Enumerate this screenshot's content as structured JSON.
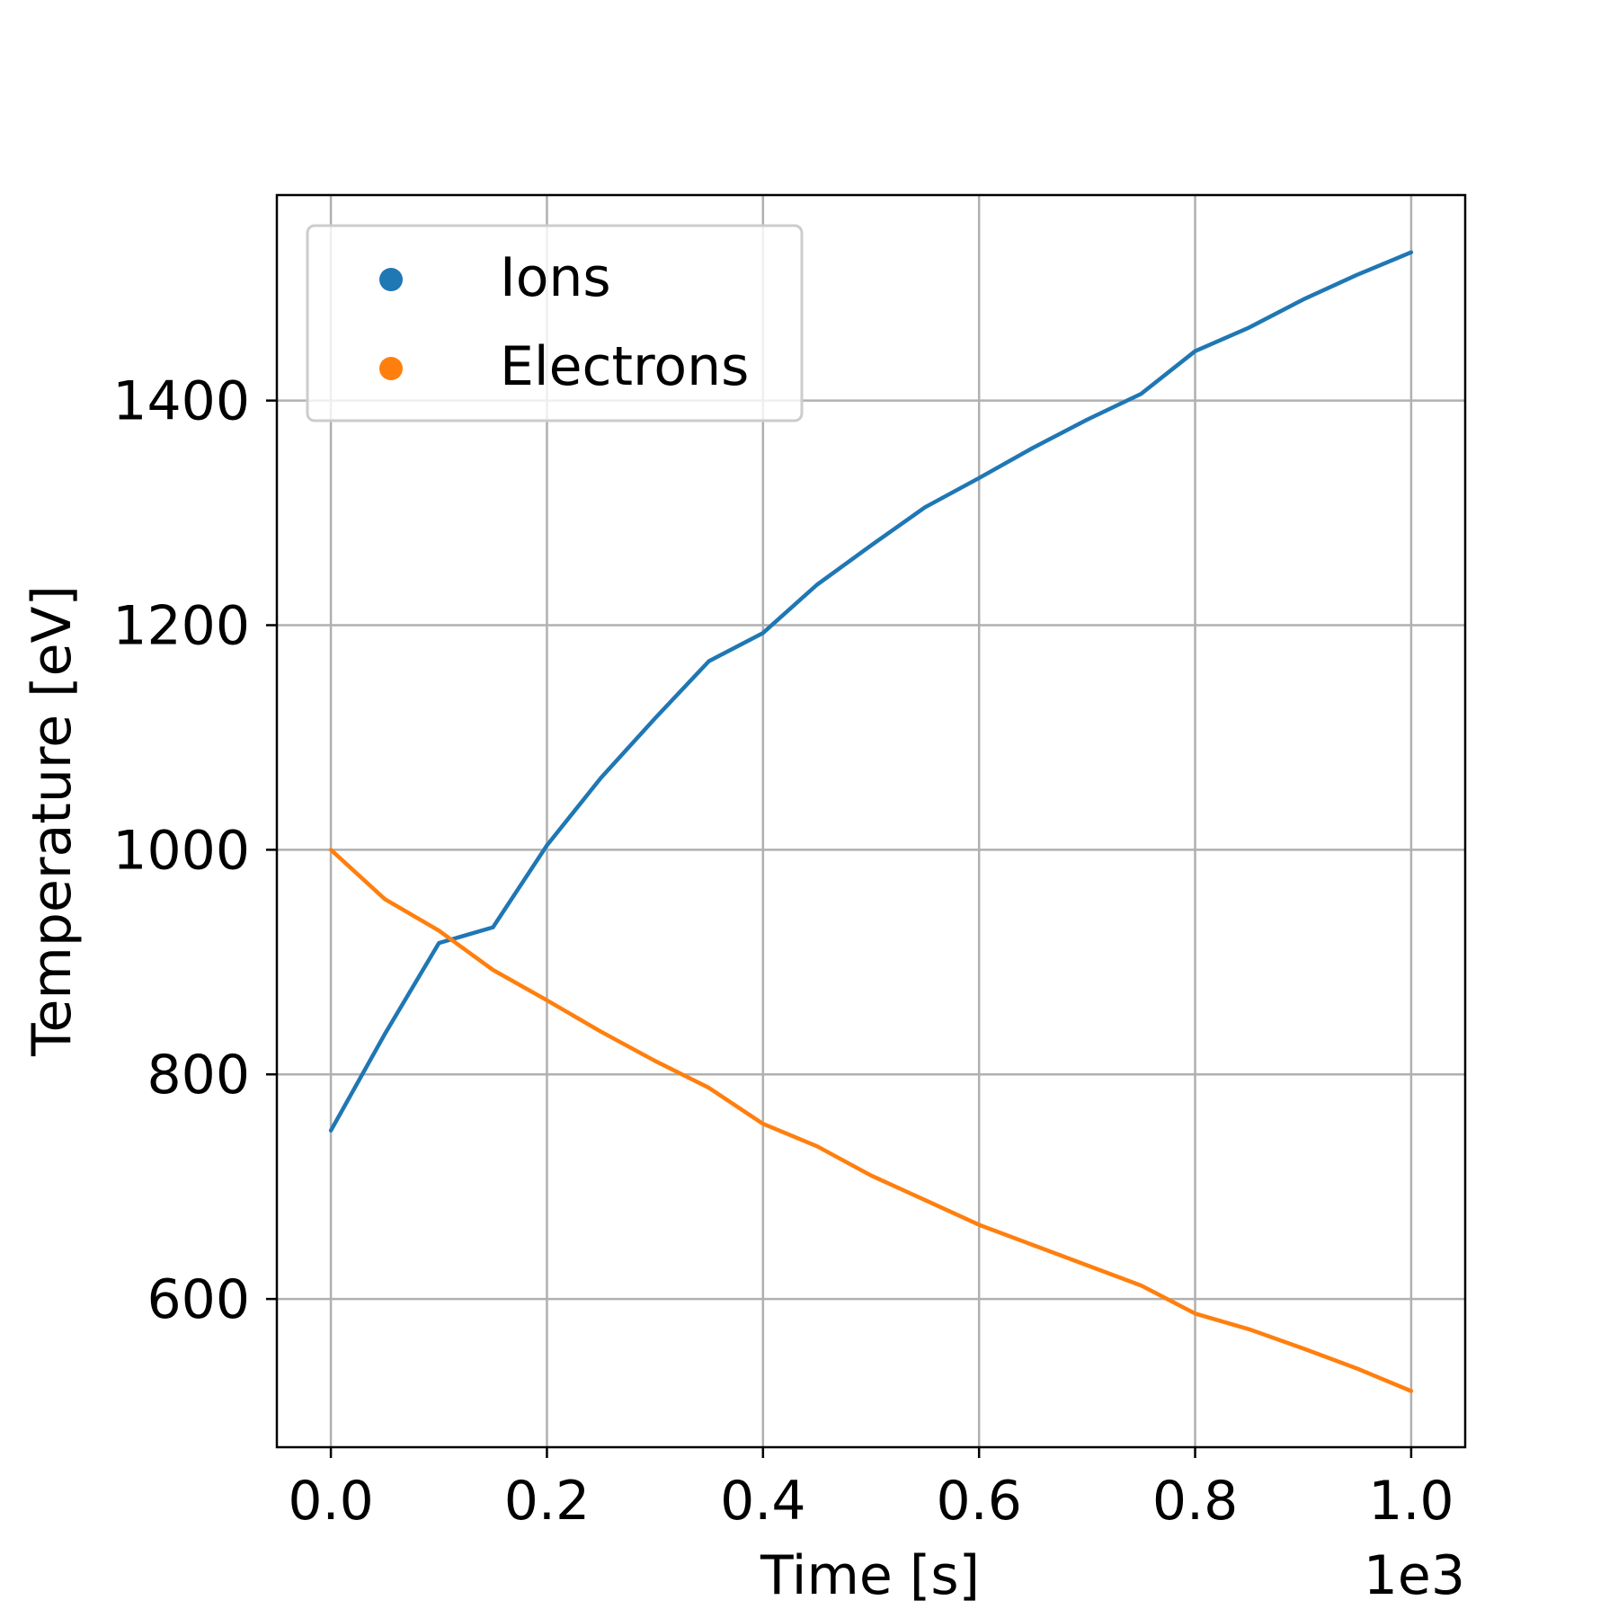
{
  "chart_data": {
    "type": "line",
    "xlabel": "Time [s]",
    "ylabel": "Temperature [eV]",
    "x_offset_text": "1e3",
    "xlim": [
      -0.05,
      1.05
    ],
    "ylim": [
      468,
      1583
    ],
    "xticks": [
      0.0,
      0.2,
      0.4,
      0.6,
      0.8,
      1.0
    ],
    "xtick_labels": [
      "0.0",
      "0.2",
      "0.4",
      "0.6",
      "0.8",
      "1.0"
    ],
    "yticks": [
      600,
      800,
      1000,
      1200,
      1400
    ],
    "ytick_labels": [
      "600",
      "800",
      "1000",
      "1200",
      "1400"
    ],
    "grid": true,
    "legend_position": "upper-left",
    "x": [
      0.0,
      0.05,
      0.1,
      0.15,
      0.2,
      0.25,
      0.3,
      0.35,
      0.4,
      0.45,
      0.5,
      0.55,
      0.6,
      0.65,
      0.7,
      0.75,
      0.8,
      0.85,
      0.9,
      0.95,
      1.0
    ],
    "series": [
      {
        "name": "Ions",
        "color": "#1f77b4",
        "values": [
          750,
          836,
          917,
          931,
          1004,
          1064,
          1117,
          1168,
          1193,
          1236,
          1271,
          1305,
          1331,
          1358,
          1383,
          1406,
          1444,
          1465,
          1490,
          1512,
          1532
        ]
      },
      {
        "name": "Electrons",
        "color": "#ff7f0e",
        "values": [
          1000,
          956,
          928,
          893,
          866,
          838,
          812,
          788,
          756,
          736,
          710,
          688,
          666,
          648,
          630,
          612,
          587,
          573,
          556,
          538,
          518
        ]
      }
    ]
  }
}
